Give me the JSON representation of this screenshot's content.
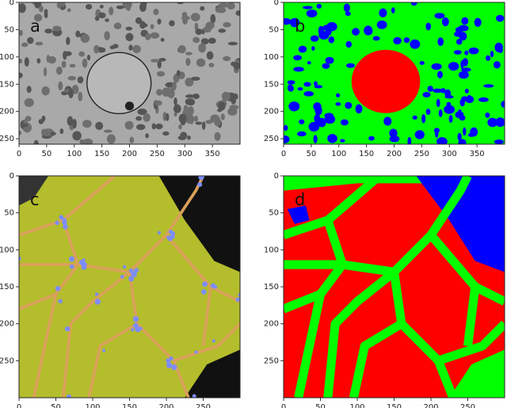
{
  "panels": [
    {
      "label": "a",
      "xlim": [
        0,
        400
      ],
      "ylim": [
        0,
        260
      ],
      "xticks": [
        0,
        50,
        100,
        150,
        200,
        250,
        300,
        350
      ],
      "yticks": [
        0,
        50,
        100,
        150,
        200,
        250
      ]
    },
    {
      "label": "b",
      "xlim": [
        0,
        400
      ],
      "ylim": [
        0,
        260
      ],
      "xticks": [
        0,
        50,
        100,
        150,
        200,
        250,
        300,
        350
      ],
      "yticks": [
        0,
        50,
        100,
        150,
        200,
        250
      ]
    },
    {
      "label": "c",
      "xlim": [
        0,
        300
      ],
      "ylim": [
        0,
        300
      ],
      "xticks": [
        0,
        50,
        100,
        150,
        200,
        250
      ],
      "yticks": [
        0,
        50,
        100,
        150,
        200,
        250
      ]
    },
    {
      "label": "d",
      "xlim": [
        0,
        300
      ],
      "ylim": [
        0,
        300
      ],
      "xticks": [
        0,
        50,
        100,
        150,
        200,
        250
      ],
      "yticks": [
        0,
        50,
        100,
        150,
        200,
        250
      ]
    }
  ]
}
